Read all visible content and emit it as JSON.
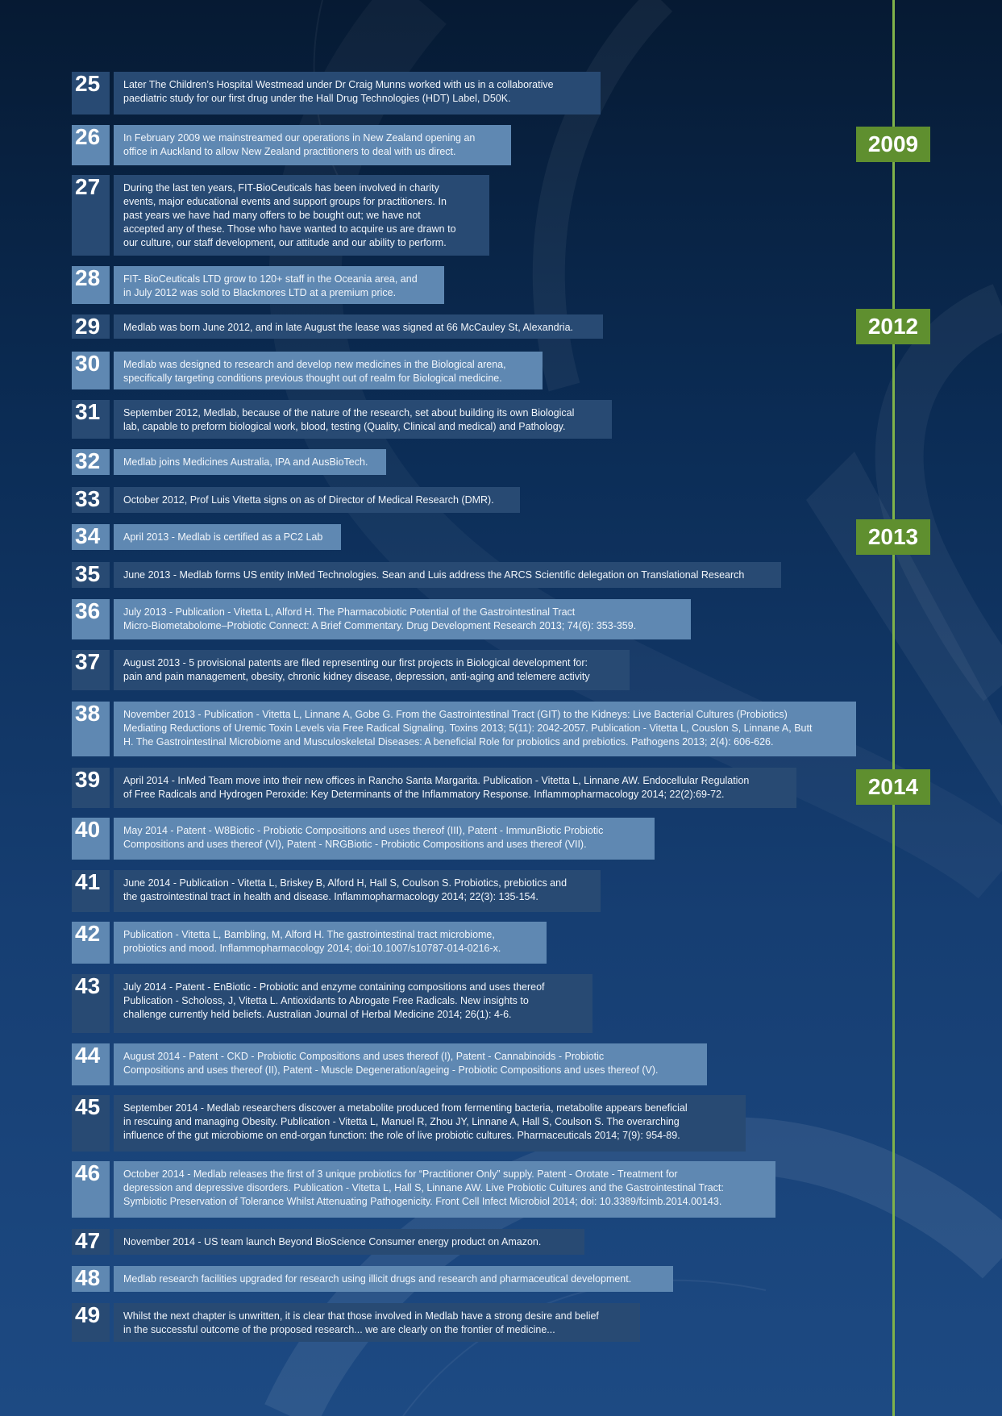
{
  "colors": {
    "timeline": "#7fb24a",
    "year_badge": "#5f8f2f",
    "box_dark": "#284a73",
    "box_light": "#5f88b2"
  },
  "years": [
    "2009",
    "2012",
    "2013",
    "2014"
  ],
  "entries": [
    {
      "num": "25",
      "text": "Later The Children’s Hospital Westmead under Dr Craig Munns worked with us in a collaborative\npaediatric study for our first drug under the Hall Drug Technologies (HDT) Label, D50K."
    },
    {
      "num": "26",
      "text": "In February 2009 we mainstreamed our operations in New Zealand opening an\noffice in Auckland to allow New Zealand practitioners to deal with us direct."
    },
    {
      "num": "27",
      "text": "During the last ten years, FIT-BioCeuticals has been involved in charity\nevents, major educational events and support groups for practitioners. In\npast years we have had many offers to be bought out; we have not\naccepted any of these. Those who have wanted to acquire us are drawn to\nour culture, our staff development, our attitude and our ability to perform."
    },
    {
      "num": "28",
      "text": "FIT- BioCeuticals LTD grow to 120+ staff in the Oceania area, and\nin July 2012 was sold to Blackmores LTD at a premium price."
    },
    {
      "num": "29",
      "text": "Medlab was born June 2012, and in late August the lease was signed at 66 McCauley St, Alexandria."
    },
    {
      "num": "30",
      "text": "Medlab was designed to research and develop new medicines in the Biological arena,\nspecifically targeting conditions previous thought out of realm for Biological medicine."
    },
    {
      "num": "31",
      "text": "September 2012, Medlab, because of the nature of the research, set about building its own Biological\nlab, capable to preform biological work, blood, testing (Quality, Clinical and medical) and Pathology."
    },
    {
      "num": "32",
      "text": "Medlab joins Medicines Australia, IPA and AusBioTech."
    },
    {
      "num": "33",
      "text": "October 2012, Prof Luis Vitetta signs on as of Director of Medical Research (DMR)."
    },
    {
      "num": "34",
      "text": "April 2013 - Medlab is certified as a PC2 Lab"
    },
    {
      "num": "35",
      "text": "June 2013 - Medlab forms US entity InMed Technologies. Sean and Luis address the ARCS Scientific delegation on Translational Research"
    },
    {
      "num": "36",
      "text": "July 2013 - Publication - Vitetta L, Alford H. The Pharmacobiotic Potential of the Gastrointestinal Tract\nMicro-Biometabolome–Probiotic Connect: A Brief Commentary. Drug Development Research 2013; 74(6): 353-359."
    },
    {
      "num": "37",
      "text": "August 2013 - 5 provisional patents are filed representing our first projects in Biological development for:\npain and pain management, obesity, chronic kidney disease, depression, anti-aging and telemere activity"
    },
    {
      "num": "38",
      "text": "November 2013 - Publication - Vitetta L, Linnane A, Gobe G.  From the Gastrointestinal Tract (GIT) to the Kidneys: Live Bacterial Cultures (Probiotics)\nMediating Reductions of Uremic Toxin Levels via Free Radical Signaling. Toxins 2013; 5(11): 2042-2057. Publication - Vitetta L, Couslon S, Linnane A, Butt\nH.  The Gastrointestinal Microbiome and Musculoskeletal Diseases: A beneficial Role for probiotics and prebiotics. Pathogens 2013; 2(4): 606-626."
    },
    {
      "num": "39",
      "text": "April 2014 - InMed Team move into their new offices in Rancho Santa Margarita. Publication - Vitetta L, Linnane AW.  Endocellular Regulation\nof Free Radicals and Hydrogen Peroxide: Key Determinants of the Inflammatory Response. Inflammopharmacology 2014; 22(2):69-72."
    },
    {
      "num": "40",
      "text": "May 2014 -  Patent - W8Biotic - Probiotic Compositions and uses thereof (III), Patent - ImmunBiotic Probiotic\nCompositions and uses thereof (VI), Patent - NRGBiotic - Probiotic Compositions and uses thereof (VII)."
    },
    {
      "num": "41",
      "text": "June 2014 - Publication - Vitetta L, Briskey B, Alford H, Hall S, Coulson S. Probiotics, prebiotics and\nthe gastrointestinal tract in health and disease. Inflammopharmacology 2014; 22(3): 135-154."
    },
    {
      "num": "42",
      "text": "Publication - Vitetta L, Bambling, M, Alford H.  The gastrointestinal tract microbiome,\nprobiotics and mood. Inflammopharmacology 2014; doi:10.1007/s10787-014-0216-x."
    },
    {
      "num": "43",
      "text": "July 2014 - Patent - EnBiotic - Probiotic and enzyme containing compositions and uses thereof\nPublication - Scholoss, J, Vitetta L. Antioxidants to Abrogate Free Radicals.  New insights to\nchallenge currently held beliefs. Australian Journal of Herbal Medicine 2014; 26(1): 4-6."
    },
    {
      "num": "44",
      "text": "August 2014 - Patent - CKD - Probiotic Compositions and uses thereof (I), Patent - Cannabinoids - Probiotic\nCompositions and uses thereof (II), Patent - Muscle Degeneration/ageing - Probiotic Compositions and uses thereof (V)."
    },
    {
      "num": "45",
      "text": "September 2014 - Medlab researchers discover a metabolite produced from fermenting bacteria, metabolite appears beneficial\nin rescuing and managing Obesity. Publication - Vitetta L, Manuel R, Zhou JY, Linnane A, Hall S, Coulson S. The overarching\ninfluence of the gut microbiome on end-organ function: the role of live probiotic cultures.  Pharmaceuticals 2014; 7(9): 954-89."
    },
    {
      "num": "46",
      "text": "October 2014 - Medlab releases the first of 3 unique probiotics for “Practitioner Only” supply. Patent - Orotate - Treatment for\ndepression and depressive disorders. Publication - Vitetta L, Hall S, Linnane AW. Live Probiotic Cultures and the Gastrointestinal Tract:\nSymbiotic Preservation of Tolerance Whilst Attenuating Pathogenicity. Front Cell Infect Microbiol 2014; doi: 10.3389/fcimb.2014.00143."
    },
    {
      "num": "47",
      "text": "November 2014 - US team launch Beyond BioScience Consumer energy product on Amazon."
    },
    {
      "num": "48",
      "text": "Medlab research facilities upgraded for research using illicit drugs and research and pharmaceutical development."
    },
    {
      "num": "49",
      "text": "Whilst the next chapter is unwritten, it is clear that those involved in Medlab have a strong desire and belief\nin the successful outcome of the proposed research... we are clearly on the frontier of medicine..."
    }
  ]
}
